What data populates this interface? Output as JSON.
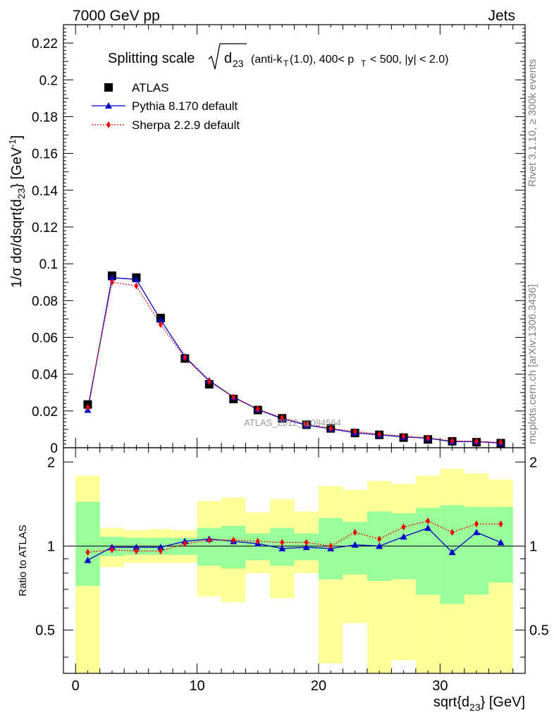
{
  "header": {
    "left_text": "7000 GeV pp",
    "right_text": "Jets"
  },
  "side_labels": {
    "rivet": "Rivet 3.1.10, ≥ 300k events",
    "mcplots": "mcplots.cern.ch [arXiv:1306.3436]"
  },
  "watermark": "ATLAS_2012_I1094564",
  "chart_data": [
    {
      "type": "line",
      "panel": "main",
      "title": "Splitting scale √d23 (anti-kT(1.0), 400< pT < 500, |y| < 2.0)",
      "ylabel": "1/σ dσ/dsqrt{d23} [GeV^-1]",
      "xlim": [
        -1,
        37
      ],
      "ylim": [
        0,
        0.23
      ],
      "y_ticks": [
        "0",
        "0.02",
        "0.04",
        "0.06",
        "0.08",
        "0.1",
        "0.12",
        "0.14",
        "0.16",
        "0.18",
        "0.2",
        "0.22"
      ],
      "legend_position": "top-left",
      "x": [
        1,
        3,
        5,
        7,
        9,
        11,
        13,
        15,
        17,
        19,
        21,
        23,
        25,
        27,
        29,
        31,
        33,
        35
      ],
      "series": [
        {
          "name": "ATLAS",
          "marker": "square",
          "color": "#000000",
          "values": [
            0.0235,
            0.0935,
            0.0925,
            0.0705,
            0.0485,
            0.0345,
            0.0265,
            0.0205,
            0.016,
            0.0125,
            0.0105,
            0.008,
            0.007,
            0.0055,
            0.0045,
            0.0035,
            0.003,
            0.0025
          ]
        },
        {
          "name": "Pythia 8.170 default",
          "marker": "triangle",
          "color": "#0000cc",
          "values": [
            0.0205,
            0.0925,
            0.0915,
            0.0695,
            0.0495,
            0.0365,
            0.0275,
            0.0208,
            0.0158,
            0.0123,
            0.0103,
            0.0081,
            0.007,
            0.0059,
            0.0052,
            0.0033,
            0.0033,
            0.0025
          ]
        },
        {
          "name": "Sherpa 2.2.9 default",
          "marker": "diamond",
          "color": "#ee0000",
          "values": [
            0.022,
            0.09,
            0.088,
            0.067,
            0.049,
            0.036,
            0.0275,
            0.021,
            0.0163,
            0.0128,
            0.0105,
            0.0088,
            0.0074,
            0.0063,
            0.0053,
            0.0037,
            0.0035,
            0.0029
          ]
        }
      ]
    },
    {
      "type": "line",
      "panel": "ratio",
      "ylabel": "Ratio to ATLAS",
      "xlabel": "sqrt{d23} [GeV]",
      "xlim": [
        -1,
        37
      ],
      "ylim": [
        0.35,
        2.25
      ],
      "x_ticks": [
        "0",
        "10",
        "20",
        "30"
      ],
      "y_ticks": [
        "0.5",
        "1",
        "2"
      ],
      "reference_line": 1,
      "band_edges": [
        0,
        2,
        4,
        6,
        8,
        10,
        12,
        14,
        16,
        18,
        20,
        22,
        24,
        26,
        28,
        30,
        32,
        34,
        36
      ],
      "bands": {
        "inner_color": "#99ff99",
        "outer_color": "#ffff99",
        "inner_low": [
          0.72,
          0.92,
          0.93,
          0.93,
          0.93,
          0.85,
          0.83,
          0.89,
          0.85,
          0.89,
          0.76,
          0.79,
          0.75,
          0.76,
          0.67,
          0.62,
          0.67,
          0.74
        ],
        "inner_high": [
          1.44,
          1.08,
          1.07,
          1.07,
          1.07,
          1.16,
          1.18,
          1.11,
          1.16,
          1.11,
          1.26,
          1.22,
          1.33,
          1.31,
          1.37,
          1.4,
          1.38,
          1.38
        ],
        "outer_low": [
          0.35,
          0.84,
          0.87,
          0.87,
          0.87,
          0.66,
          0.63,
          0.8,
          0.65,
          0.8,
          0.38,
          0.53,
          0.35,
          0.39,
          0.35,
          0.35,
          0.35,
          0.35
        ],
        "outer_high": [
          1.79,
          1.16,
          1.14,
          1.15,
          1.14,
          1.45,
          1.49,
          1.32,
          1.47,
          1.33,
          1.64,
          1.59,
          1.71,
          1.67,
          1.79,
          1.89,
          1.82,
          1.73
        ]
      },
      "x": [
        1,
        3,
        5,
        7,
        9,
        11,
        13,
        15,
        17,
        19,
        21,
        23,
        25,
        27,
        29,
        31,
        33,
        35
      ],
      "series": [
        {
          "name": "Pythia 8.170 default",
          "marker": "triangle",
          "color": "#0000cc",
          "values": [
            0.89,
            0.99,
            0.99,
            0.99,
            1.04,
            1.06,
            1.04,
            1.02,
            0.98,
            0.99,
            0.98,
            1.01,
            1.0,
            1.08,
            1.16,
            0.95,
            1.12,
            1.03
          ]
        },
        {
          "name": "Sherpa 2.2.9 default",
          "marker": "diamond",
          "color": "#ee0000",
          "values": [
            0.95,
            0.97,
            0.96,
            0.96,
            1.02,
            1.05,
            1.05,
            1.04,
            1.03,
            1.03,
            1.0,
            1.12,
            1.06,
            1.17,
            1.23,
            1.12,
            1.2,
            1.2
          ]
        }
      ]
    }
  ]
}
